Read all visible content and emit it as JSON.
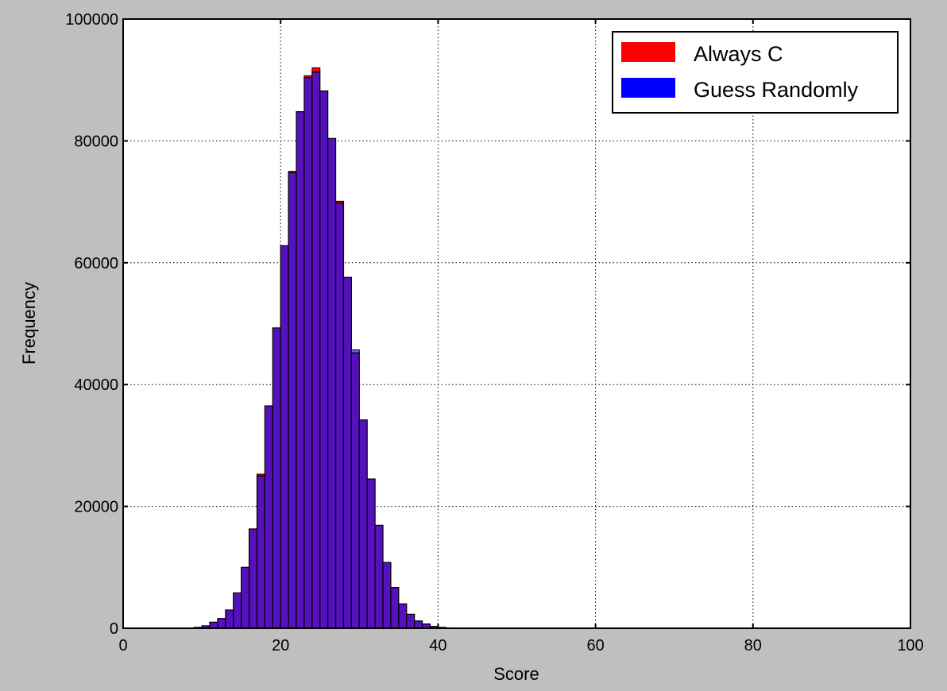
{
  "chart_data": {
    "type": "bar",
    "xlabel": "Score",
    "ylabel": "Frequency",
    "xlim": [
      0,
      100
    ],
    "ylim": [
      0,
      100000
    ],
    "xticks": [
      0,
      20,
      40,
      60,
      80,
      100
    ],
    "yticks": [
      0,
      20000,
      40000,
      60000,
      80000,
      100000
    ],
    "xtick_labels": [
      "0",
      "20",
      "40",
      "60",
      "80",
      "100"
    ],
    "ytick_labels": [
      "0",
      "20000",
      "40000",
      "60000",
      "80000",
      "100000"
    ],
    "grid": true,
    "legend_position": "top-right",
    "bin_width": 1,
    "bin_starts": [
      8,
      9,
      10,
      11,
      12,
      13,
      14,
      15,
      16,
      17,
      18,
      19,
      20,
      21,
      22,
      23,
      24,
      25,
      26,
      27,
      28,
      29,
      30,
      31,
      32,
      33,
      34,
      35,
      36,
      37,
      38,
      39,
      40,
      41,
      42,
      43,
      44
    ],
    "overlap_color": "#5511bb",
    "series": [
      {
        "name": "Always C",
        "color": "#ff0000",
        "values": [
          50,
          150,
          400,
          1000,
          1600,
          3000,
          5800,
          10000,
          16300,
          25300,
          36500,
          49300,
          62800,
          75000,
          84800,
          90700,
          92000,
          88200,
          80400,
          70100,
          57600,
          45200,
          34200,
          24500,
          16900,
          10800,
          6700,
          4000,
          2300,
          1200,
          700,
          300,
          150,
          60,
          25,
          10,
          5
        ]
      },
      {
        "name": "Guess Randomly",
        "color": "#0000ff",
        "values": [
          50,
          150,
          400,
          1000,
          1600,
          3000,
          5800,
          10000,
          16300,
          25000,
          36500,
          49300,
          62800,
          74800,
          84800,
          90400,
          91300,
          88200,
          80400,
          69800,
          57600,
          45700,
          34200,
          24500,
          16900,
          10800,
          6700,
          4000,
          2300,
          1200,
          700,
          300,
          150,
          60,
          25,
          10,
          5
        ]
      }
    ]
  }
}
